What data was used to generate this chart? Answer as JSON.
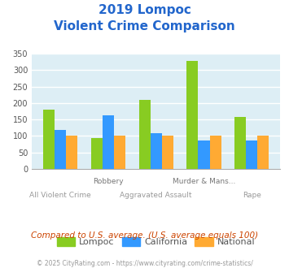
{
  "title_line1": "2019 Lompoc",
  "title_line2": "Violent Crime Comparison",
  "title_color": "#2266cc",
  "categories": [
    "All Violent Crime",
    "Robbery",
    "Aggravated Assault",
    "Murder & Mans...",
    "Rape"
  ],
  "lompoc": [
    180,
    93,
    210,
    328,
    158
  ],
  "california": [
    117,
    163,
    108,
    85,
    87
  ],
  "national": [
    100,
    100,
    100,
    100,
    100
  ],
  "lompoc_color": "#88cc22",
  "california_color": "#3399ff",
  "national_color": "#ffaa33",
  "ylim": [
    0,
    350
  ],
  "yticks": [
    0,
    50,
    100,
    150,
    200,
    250,
    300,
    350
  ],
  "chart_bg": "#ddeef5",
  "grid_color": "#ffffff",
  "footnote": "Compared to U.S. average. (U.S. average equals 100)",
  "footnote_color": "#cc4400",
  "copyright": "© 2025 CityRating.com - https://www.cityrating.com/crime-statistics/",
  "copyright_color": "#999999"
}
